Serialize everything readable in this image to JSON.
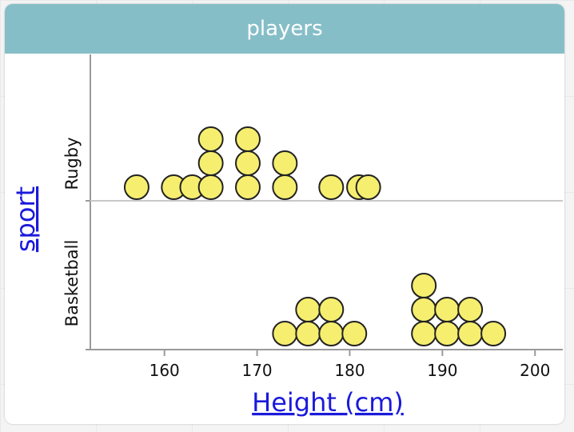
{
  "app": {
    "title": "players"
  },
  "colors": {
    "header_bg": "#86bec8",
    "dot_fill": "#f6ee6f",
    "dot_stroke": "#222222",
    "link_blue": "#1a1adb"
  },
  "chart_data": {
    "type": "scatter",
    "title": "players",
    "xlabel": "Height (cm)",
    "ylabel": "sport",
    "xlim": [
      152,
      203
    ],
    "x_ticks": [
      160,
      170,
      180,
      190,
      200
    ],
    "categories": [
      "Basketball",
      "Rugby"
    ],
    "grid": false,
    "series": [
      {
        "name": "Rugby",
        "x": [
          157,
          161,
          163,
          165,
          165,
          165,
          169,
          169,
          169,
          173,
          173,
          178,
          181,
          182
        ]
      },
      {
        "name": "Basketball",
        "x": [
          173,
          175.5,
          175.5,
          178,
          178,
          180.5,
          188,
          188,
          188,
          190.5,
          190.5,
          193,
          193,
          195.5
        ]
      }
    ]
  }
}
